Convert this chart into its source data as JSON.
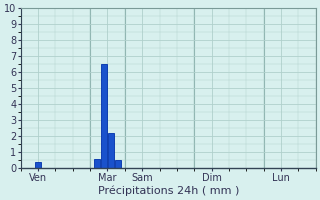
{
  "title": "",
  "xlabel": "Précipitations 24h ( mm )",
  "ylabel": "",
  "background_color": "#d8f0ee",
  "plot_bg_color": "#d8f0ee",
  "grid_color": "#b0d0cc",
  "bar_color": "#1a52cc",
  "bar_edge_color": "#0030aa",
  "ylim": [
    0,
    10
  ],
  "yticks": [
    0,
    1,
    2,
    3,
    4,
    5,
    6,
    7,
    8,
    9,
    10
  ],
  "xtick_labels": [
    "Ven",
    "",
    "Mar",
    "Sam",
    "",
    "Dim",
    "",
    "Lun"
  ],
  "xtick_positions": [
    0,
    1,
    2,
    3,
    4,
    5,
    6,
    7
  ],
  "num_days": 8,
  "bar_positions": [
    0.0,
    1.7,
    1.9,
    2.1,
    2.3,
    2.5
  ],
  "bar_heights": [
    0.4,
    0.6,
    6.5,
    2.2,
    0.5,
    0.0
  ],
  "bar_width": 0.18,
  "figsize": [
    3.2,
    2.0
  ],
  "dpi": 100,
  "xlabel_fontsize": 8,
  "tick_fontsize": 7,
  "tick_color": "#333355"
}
